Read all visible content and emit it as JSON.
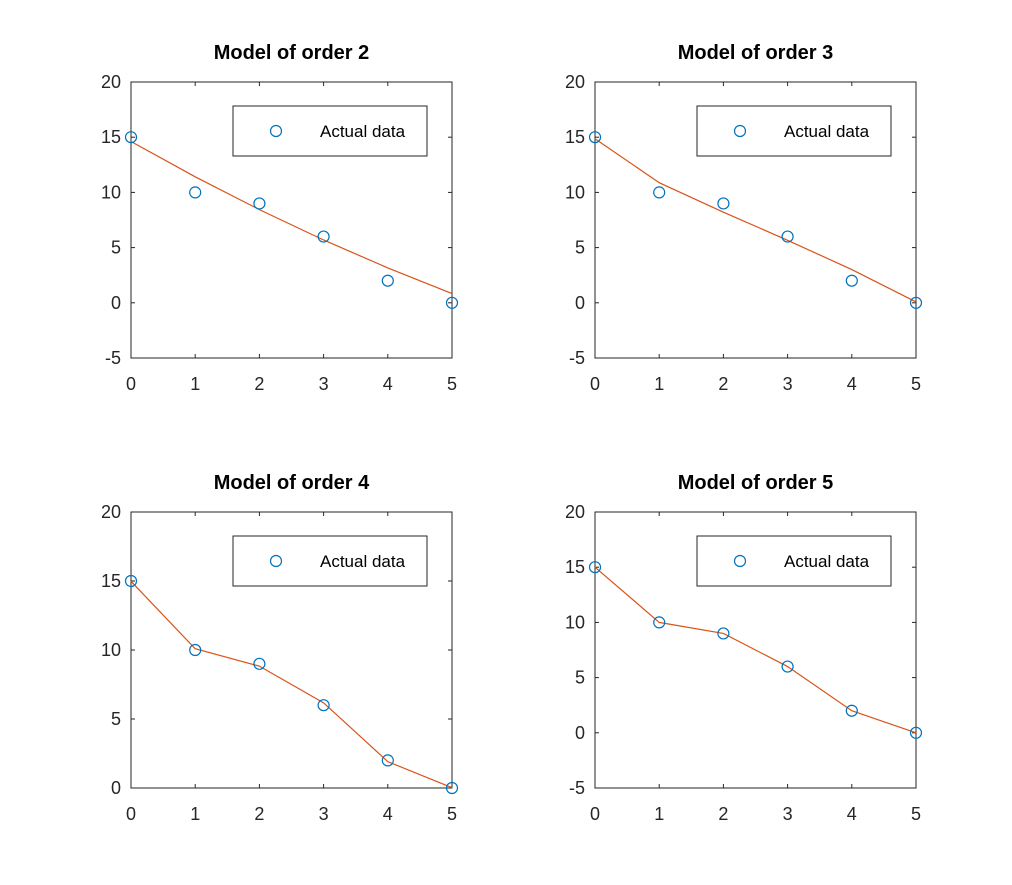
{
  "colors": {
    "marker": "#0072BD",
    "fit_line": "#D95319",
    "axes": "#262626",
    "background": "#ffffff"
  },
  "chart_data": [
    {
      "type": "line",
      "title": "Model of order 2",
      "xlabel": "",
      "ylabel": "",
      "xlim": [
        0,
        5
      ],
      "ylim": [
        -5,
        20
      ],
      "xticks": [
        0,
        1,
        2,
        3,
        4,
        5
      ],
      "yticks": [
        -5,
        0,
        5,
        10,
        15,
        20
      ],
      "grid": false,
      "legend": {
        "position": "top-right",
        "entries": [
          "Actual data"
        ]
      },
      "series": [
        {
          "name": "Actual data",
          "style": "markers",
          "x": [
            0,
            1,
            2,
            3,
            4,
            5
          ],
          "y": [
            15,
            10,
            9,
            6,
            2,
            0
          ]
        },
        {
          "style": "line",
          "x": [
            0,
            1,
            2,
            3,
            4,
            5
          ],
          "y": [
            14.61,
            11.41,
            8.44,
            5.69,
            3.16,
            0.84
          ]
        }
      ]
    },
    {
      "type": "line",
      "title": "Model of order 3",
      "xlabel": "",
      "ylabel": "",
      "xlim": [
        0,
        5
      ],
      "ylim": [
        -5,
        20
      ],
      "xticks": [
        0,
        1,
        2,
        3,
        4,
        5
      ],
      "yticks": [
        -5,
        0,
        5,
        10,
        15,
        20
      ],
      "grid": false,
      "legend": {
        "position": "top-right",
        "entries": [
          "Actual data"
        ]
      },
      "series": [
        {
          "name": "Actual data",
          "style": "markers",
          "x": [
            0,
            1,
            2,
            3,
            4,
            5
          ],
          "y": [
            15,
            10,
            9,
            6,
            2,
            0
          ]
        },
        {
          "style": "line",
          "x": [
            0,
            1,
            2,
            3,
            4,
            5
          ],
          "y": [
            14.86,
            10.88,
            8.21,
            5.66,
            3.01,
            0.08
          ]
        }
      ]
    },
    {
      "type": "line",
      "title": "Model of order 4",
      "xlabel": "",
      "ylabel": "",
      "xlim": [
        0,
        5
      ],
      "ylim": [
        0,
        20
      ],
      "xticks": [
        0,
        1,
        2,
        3,
        4,
        5
      ],
      "yticks": [
        0,
        5,
        10,
        15,
        20
      ],
      "grid": false,
      "legend": {
        "position": "top-right",
        "entries": [
          "Actual data"
        ]
      },
      "series": [
        {
          "name": "Actual data",
          "style": "markers",
          "x": [
            0,
            1,
            2,
            3,
            4,
            5
          ],
          "y": [
            15,
            10,
            9,
            6,
            2,
            0
          ]
        },
        {
          "style": "line",
          "x": [
            0,
            1,
            2,
            3,
            4,
            5
          ],
          "y": [
            14.98,
            10.09,
            8.83,
            6.17,
            1.91,
            0.02
          ]
        }
      ]
    },
    {
      "type": "line",
      "title": "Model of order 5",
      "xlabel": "",
      "ylabel": "",
      "xlim": [
        0,
        5
      ],
      "ylim": [
        -5,
        20
      ],
      "xticks": [
        0,
        1,
        2,
        3,
        4,
        5
      ],
      "yticks": [
        -5,
        0,
        5,
        10,
        15,
        20
      ],
      "grid": false,
      "legend": {
        "position": "top-right",
        "entries": [
          "Actual data"
        ]
      },
      "series": [
        {
          "name": "Actual data",
          "style": "markers",
          "x": [
            0,
            1,
            2,
            3,
            4,
            5
          ],
          "y": [
            15,
            10,
            9,
            6,
            2,
            0
          ]
        },
        {
          "style": "line",
          "x": [
            0,
            1,
            2,
            3,
            4,
            5
          ],
          "y": [
            15,
            10,
            9,
            6,
            2,
            0
          ]
        }
      ]
    }
  ]
}
